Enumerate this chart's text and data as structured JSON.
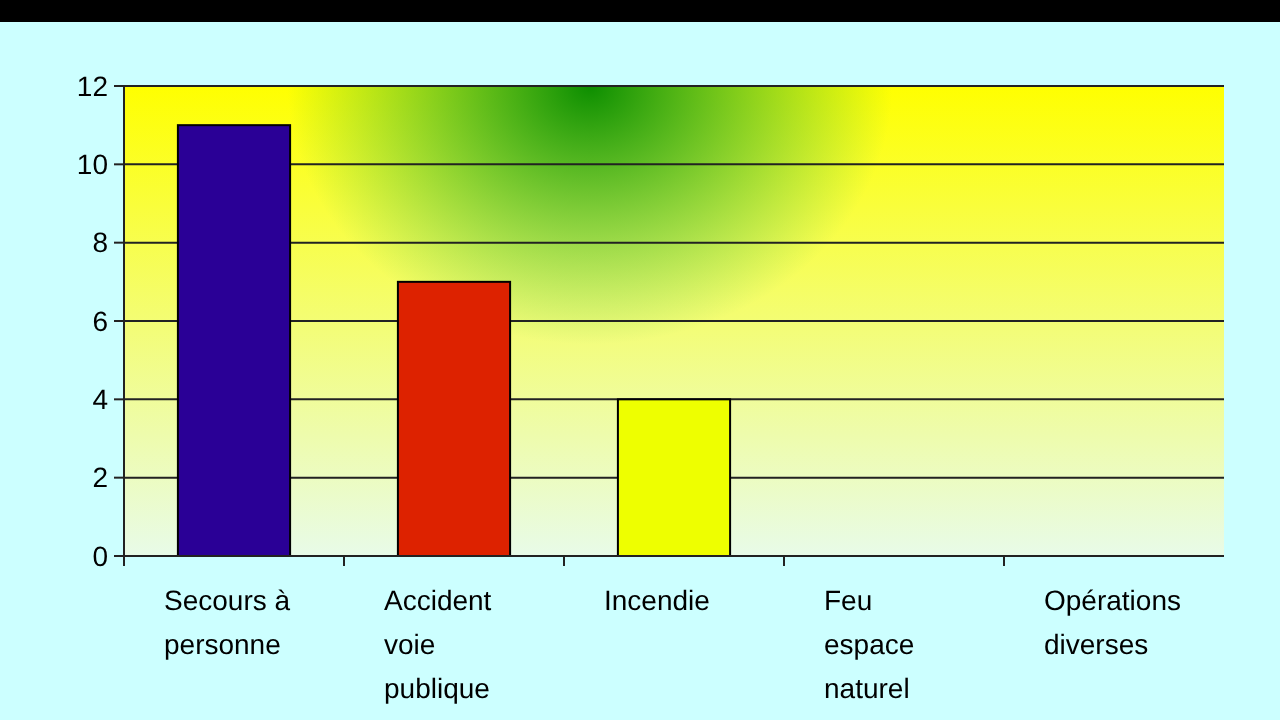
{
  "chart_data": {
    "type": "bar",
    "categories": [
      "Secours à\npersonne",
      "Accident\nvoie\npublique",
      "Incendie",
      "Feu\nespace\nnaturel",
      "Opérations\ndiverses"
    ],
    "values": [
      11,
      7,
      4,
      0,
      0
    ],
    "colors": [
      "#2a0096",
      "#dd2200",
      "#eeff00",
      "#888888",
      "#888888"
    ],
    "ylim": [
      0,
      12
    ],
    "yticks": [
      0,
      2,
      4,
      6,
      8,
      10,
      12
    ],
    "grid": "y"
  }
}
